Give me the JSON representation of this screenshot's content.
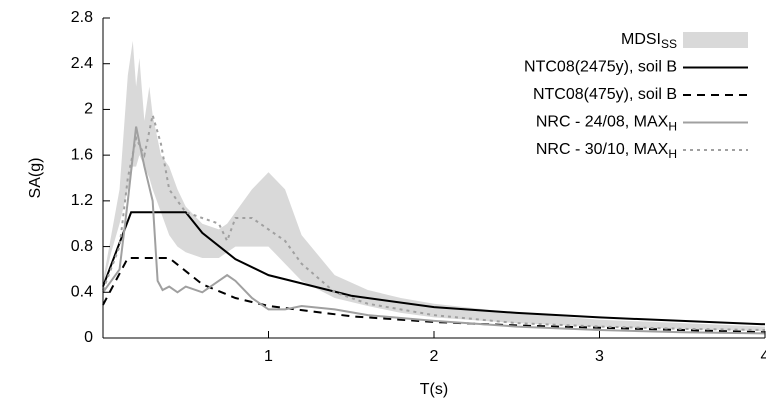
{
  "chart_data": {
    "type": "line",
    "x_label": "T(s)",
    "y_label": "SA(g)",
    "xlim": [
      0,
      4
    ],
    "xticks": [
      1,
      2,
      3,
      4
    ],
    "ylim": [
      0,
      2.8
    ],
    "yticks": [
      0,
      0.4,
      0.8,
      1.2,
      1.6,
      2,
      2.4,
      2.8
    ],
    "legend": "top-right",
    "series": [
      {
        "name": "MDSI",
        "subscript": "SS",
        "style": "band",
        "color": "#d9d9d9",
        "x": [
          0,
          0.05,
          0.1,
          0.15,
          0.18,
          0.2,
          0.22,
          0.25,
          0.28,
          0.3,
          0.35,
          0.4,
          0.45,
          0.5,
          0.6,
          0.7,
          0.75,
          0.8,
          0.9,
          1.0,
          1.1,
          1.2,
          1.4,
          1.6,
          1.8,
          2.0,
          2.5,
          3.0,
          3.5,
          4.0
        ],
        "upper": [
          0.5,
          0.9,
          1.3,
          2.3,
          2.6,
          2.2,
          2.45,
          1.9,
          2.2,
          1.95,
          1.6,
          1.5,
          1.3,
          1.15,
          1.0,
          0.95,
          1.0,
          1.1,
          1.3,
          1.45,
          1.3,
          0.9,
          0.55,
          0.42,
          0.35,
          0.3,
          0.22,
          0.16,
          0.13,
          0.1
        ],
        "lower": [
          0.45,
          0.75,
          1.0,
          1.3,
          1.5,
          1.5,
          1.6,
          1.5,
          1.4,
          1.3,
          1.1,
          0.9,
          0.8,
          0.75,
          0.7,
          0.7,
          0.75,
          0.8,
          0.8,
          0.8,
          0.65,
          0.5,
          0.35,
          0.28,
          0.22,
          0.18,
          0.13,
          0.1,
          0.08,
          0.06
        ]
      },
      {
        "name": "NTC08(2475y), soil B",
        "style": "solid",
        "color": "#000000",
        "x": [
          0,
          0.17,
          0.5,
          0.6,
          0.8,
          1.0,
          1.5,
          2.0,
          2.5,
          3.0,
          3.5,
          4.0
        ],
        "values": [
          0.45,
          1.1,
          1.1,
          0.92,
          0.69,
          0.55,
          0.37,
          0.27,
          0.22,
          0.18,
          0.15,
          0.12
        ]
      },
      {
        "name": "NTC08(475y), soil B",
        "style": "dashed",
        "color": "#000000",
        "x": [
          0,
          0.15,
          0.4,
          0.6,
          0.8,
          1.0,
          1.5,
          2.0,
          2.5,
          3.0,
          3.5,
          4.0
        ],
        "values": [
          0.29,
          0.7,
          0.7,
          0.47,
          0.35,
          0.28,
          0.19,
          0.14,
          0.11,
          0.09,
          0.07,
          0.05
        ]
      },
      {
        "name": "NRC - 24/08, MAX",
        "subscript": "H",
        "style": "solid",
        "color": "#a0a0a0",
        "x": [
          0,
          0.1,
          0.15,
          0.2,
          0.25,
          0.3,
          0.33,
          0.36,
          0.4,
          0.45,
          0.5,
          0.6,
          0.7,
          0.75,
          0.8,
          0.9,
          1.0,
          1.1,
          1.2,
          1.4,
          1.6,
          2.0,
          2.5,
          3.0,
          3.5,
          4.0
        ],
        "values": [
          0.4,
          0.6,
          1.2,
          1.85,
          1.5,
          1.2,
          0.5,
          0.42,
          0.45,
          0.4,
          0.45,
          0.4,
          0.5,
          0.55,
          0.5,
          0.35,
          0.25,
          0.25,
          0.28,
          0.25,
          0.2,
          0.15,
          0.1,
          0.07,
          0.05,
          0.04
        ]
      },
      {
        "name": "NRC - 30/10, MAX",
        "subscript": "H",
        "style": "dotted",
        "color": "#a0a0a0",
        "x": [
          0,
          0.1,
          0.15,
          0.2,
          0.25,
          0.3,
          0.35,
          0.4,
          0.5,
          0.6,
          0.7,
          0.75,
          0.8,
          0.9,
          1.0,
          1.1,
          1.2,
          1.4,
          1.6,
          2.0,
          2.5,
          3.0,
          3.5,
          4.0
        ],
        "values": [
          0.42,
          0.8,
          1.4,
          1.75,
          1.6,
          1.95,
          1.7,
          1.3,
          1.1,
          1.05,
          1.0,
          0.85,
          1.05,
          1.05,
          0.95,
          0.85,
          0.65,
          0.4,
          0.3,
          0.2,
          0.13,
          0.1,
          0.08,
          0.07
        ]
      }
    ]
  }
}
